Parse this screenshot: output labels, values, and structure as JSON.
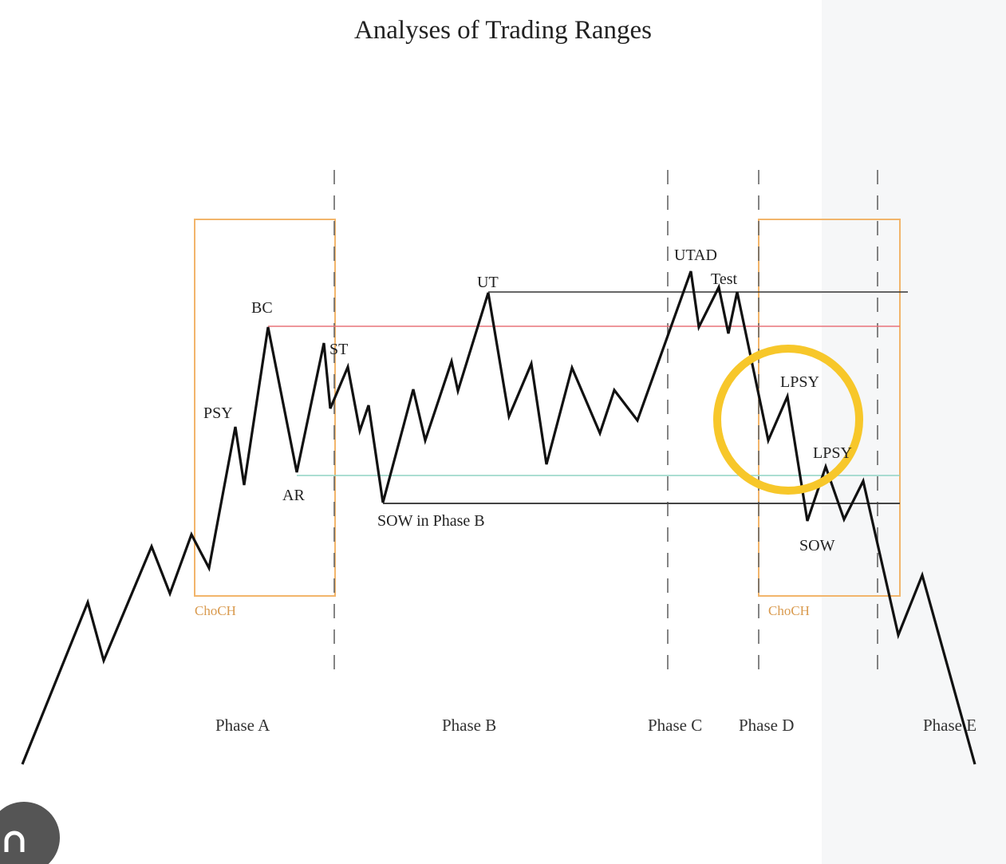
{
  "title": "Analyses of Trading Ranges",
  "colors": {
    "price_line": "#111111",
    "choch_box": "#f2b56b",
    "resistance_line_top": "#333333",
    "resistance_line_red": "#e8737a",
    "support_line_teal": "#8fd3c4",
    "support_line_bottom": "#444444",
    "highlight_circle": "#f7c72a"
  },
  "labels": {
    "psy": "PSY",
    "bc": "BC",
    "ar": "AR",
    "st": "ST",
    "sow_phase_b": "SOW in Phase B",
    "ut": "UT",
    "utad": "UTAD",
    "test": "Test",
    "lpsy_1": "LPSY",
    "lpsy_2": "LPSY",
    "sow": "SOW"
  },
  "choch_boxes": [
    "ChoCH",
    "ChoCH"
  ],
  "phases": [
    "Phase A",
    "Phase B",
    "Phase C",
    "Phase D",
    "Phase E"
  ],
  "highlight": "circle around LPSY"
}
